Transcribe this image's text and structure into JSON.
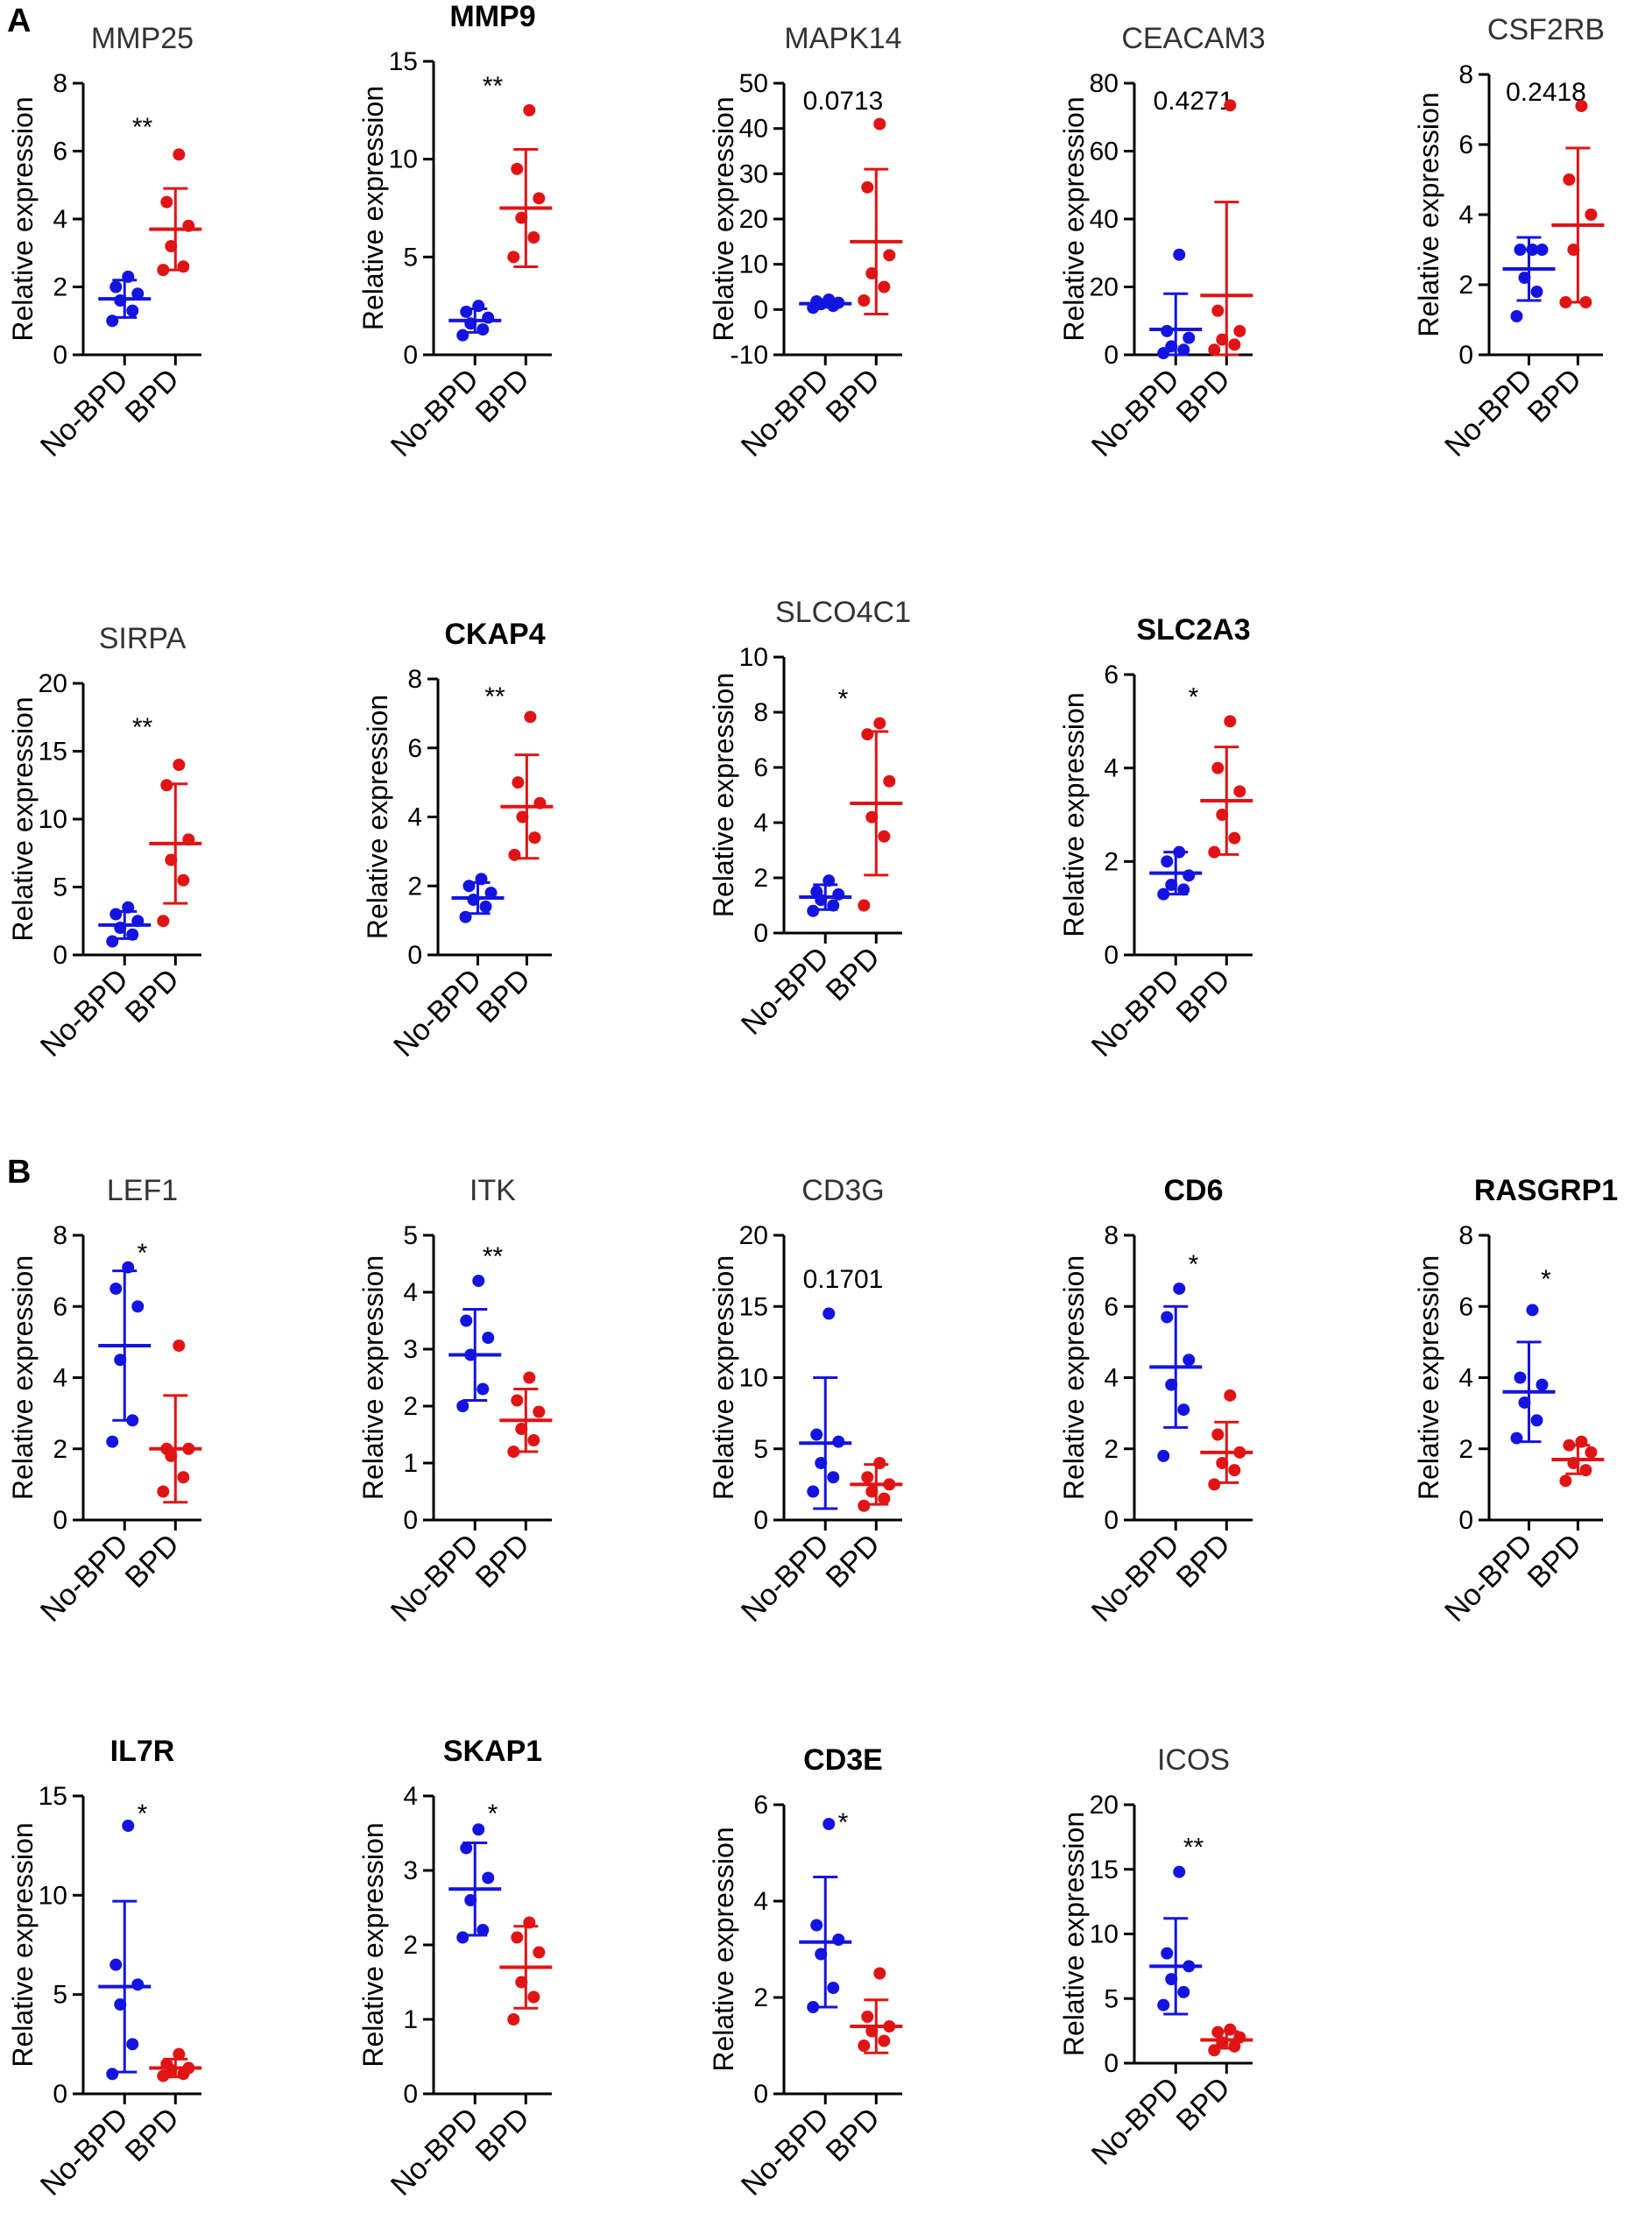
{
  "panel_labels": [
    "A",
    "B"
  ],
  "colors": {
    "nobpd": "#1414e0",
    "bpd": "#e01414",
    "axis": "#000000"
  },
  "chart_data": [
    {
      "type": "scatter",
      "panel": "A",
      "title": "MMP25",
      "bold": false,
      "ylabel": "Relative expression",
      "categories": [
        "No-BPD",
        "BPD"
      ],
      "ylim": [
        0,
        8
      ],
      "yticks": [
        0,
        2,
        4,
        6,
        8
      ],
      "sig": "**",
      "series": [
        {
          "name": "No-BPD",
          "mean": 1.65,
          "sd": 0.55,
          "points": [
            1.0,
            1.3,
            1.6,
            1.8,
            2.0,
            2.3
          ]
        },
        {
          "name": "BPD",
          "mean": 3.7,
          "sd": 1.2,
          "points": [
            2.5,
            2.6,
            3.2,
            3.8,
            4.5,
            5.9
          ]
        }
      ]
    },
    {
      "type": "scatter",
      "panel": "A",
      "title": "MMP9",
      "bold": true,
      "ylabel": "Relative expression",
      "categories": [
        "No-BPD",
        "BPD"
      ],
      "ylim": [
        0,
        15
      ],
      "yticks": [
        0,
        5,
        10,
        15
      ],
      "sig": "**",
      "series": [
        {
          "name": "No-BPD",
          "mean": 1.75,
          "sd": 0.6,
          "points": [
            1.0,
            1.3,
            1.6,
            1.9,
            2.2,
            2.5
          ]
        },
        {
          "name": "BPD",
          "mean": 7.5,
          "sd": 3.0,
          "points": [
            5.0,
            6.0,
            7.0,
            8.0,
            9.5,
            12.5
          ]
        }
      ]
    },
    {
      "type": "scatter",
      "panel": "A",
      "title": "MAPK14",
      "bold": false,
      "ylabel": "Relative expression",
      "categories": [
        "No-BPD",
        "BPD"
      ],
      "ylim": [
        -10,
        50
      ],
      "yticks": [
        -10,
        0,
        10,
        20,
        30,
        40,
        50
      ],
      "sig": "0.0713",
      "series": [
        {
          "name": "No-BPD",
          "mean": 1.3,
          "sd": 0.8,
          "points": [
            0.4,
            0.8,
            1.2,
            1.5,
            1.8,
            2.2
          ]
        },
        {
          "name": "BPD",
          "mean": 15.0,
          "sd": 16.0,
          "points": [
            2.0,
            5.0,
            8.0,
            12.0,
            27.0,
            41.0
          ]
        }
      ]
    },
    {
      "type": "scatter",
      "panel": "A",
      "title": "CEACAM3",
      "bold": false,
      "ylabel": "Relative expression",
      "categories": [
        "No-BPD",
        "BPD"
      ],
      "ylim": [
        0,
        80
      ],
      "yticks": [
        0,
        20,
        40,
        60,
        80
      ],
      "sig": "0.4271",
      "series": [
        {
          "name": "No-BPD",
          "mean": 7.5,
          "sd": 10.5,
          "points": [
            0.5,
            1.5,
            2.5,
            5.0,
            7.0,
            29.5
          ]
        },
        {
          "name": "BPD",
          "mean": 17.5,
          "sd": 27.5,
          "points": [
            1.5,
            3.0,
            4.5,
            7.0,
            13.0,
            73.5
          ]
        }
      ]
    },
    {
      "type": "scatter",
      "panel": "A",
      "title": "CSF2RB",
      "bold": false,
      "ylabel": "Relative expression",
      "categories": [
        "No-BPD",
        "BPD"
      ],
      "ylim": [
        0,
        8
      ],
      "yticks": [
        0,
        2,
        4,
        6,
        8
      ],
      "sig": "0.2418",
      "series": [
        {
          "name": "No-BPD",
          "mean": 2.45,
          "sd": 0.9,
          "points": [
            1.1,
            1.8,
            2.2,
            3.0,
            3.0,
            3.0
          ]
        },
        {
          "name": "BPD",
          "mean": 3.7,
          "sd": 2.2,
          "points": [
            1.5,
            1.5,
            3.0,
            4.0,
            5.0,
            7.1
          ]
        }
      ]
    },
    {
      "type": "scatter",
      "panel": "A",
      "title": "SIRPA",
      "bold": false,
      "ylabel": "Relative expression",
      "categories": [
        "No-BPD",
        "BPD"
      ],
      "ylim": [
        0,
        20
      ],
      "yticks": [
        0,
        5,
        10,
        15,
        20
      ],
      "sig": "**",
      "series": [
        {
          "name": "No-BPD",
          "mean": 2.2,
          "sd": 1.0,
          "points": [
            1.0,
            1.5,
            2.0,
            2.5,
            3.0,
            3.5
          ]
        },
        {
          "name": "BPD",
          "mean": 8.2,
          "sd": 4.4,
          "points": [
            2.5,
            5.5,
            7.0,
            8.5,
            12.5,
            14.0
          ]
        }
      ]
    },
    {
      "type": "scatter",
      "panel": "A",
      "title": "CKAP4",
      "bold": true,
      "ylabel": "Relative expression",
      "categories": [
        "No-BPD",
        "BPD"
      ],
      "ylim": [
        0,
        8
      ],
      "yticks": [
        0,
        2,
        4,
        6,
        8
      ],
      "sig": "**",
      "series": [
        {
          "name": "No-BPD",
          "mean": 1.65,
          "sd": 0.45,
          "points": [
            1.1,
            1.4,
            1.6,
            1.8,
            2.0,
            2.2
          ]
        },
        {
          "name": "BPD",
          "mean": 4.3,
          "sd": 1.5,
          "points": [
            2.9,
            3.4,
            4.0,
            4.4,
            5.0,
            6.9
          ]
        }
      ]
    },
    {
      "type": "scatter",
      "panel": "A",
      "title": "SLCO4C1",
      "bold": false,
      "ylabel": "Relative expression",
      "categories": [
        "No-BPD",
        "BPD"
      ],
      "ylim": [
        0,
        10
      ],
      "yticks": [
        0,
        2,
        4,
        6,
        8,
        10
      ],
      "sig": "*",
      "series": [
        {
          "name": "No-BPD",
          "mean": 1.3,
          "sd": 0.45,
          "points": [
            0.8,
            1.0,
            1.2,
            1.4,
            1.5,
            1.9
          ]
        },
        {
          "name": "BPD",
          "mean": 4.7,
          "sd": 2.6,
          "points": [
            1.0,
            3.5,
            4.2,
            5.5,
            7.2,
            7.6
          ]
        }
      ]
    },
    {
      "type": "scatter",
      "panel": "A",
      "title": "SLC2A3",
      "bold": true,
      "ylabel": "Relative expression",
      "categories": [
        "No-BPD",
        "BPD"
      ],
      "ylim": [
        0,
        6
      ],
      "yticks": [
        0,
        2,
        4,
        6
      ],
      "sig": "*",
      "series": [
        {
          "name": "No-BPD",
          "mean": 1.75,
          "sd": 0.45,
          "points": [
            1.3,
            1.4,
            1.5,
            1.7,
            2.0,
            2.2
          ]
        },
        {
          "name": "BPD",
          "mean": 3.3,
          "sd": 1.15,
          "points": [
            2.2,
            2.5,
            3.0,
            3.5,
            4.0,
            5.0
          ]
        }
      ]
    },
    {
      "type": "scatter",
      "panel": "B",
      "title": "LEF1",
      "bold": false,
      "ylabel": "Relative expression",
      "categories": [
        "No-BPD",
        "BPD"
      ],
      "ylim": [
        0,
        8
      ],
      "yticks": [
        0,
        2,
        4,
        6,
        8
      ],
      "sig": "*",
      "series": [
        {
          "name": "No-BPD",
          "mean": 4.9,
          "sd": 2.1,
          "points": [
            2.2,
            2.8,
            4.5,
            6.0,
            6.5,
            7.1
          ]
        },
        {
          "name": "BPD",
          "mean": 2.0,
          "sd": 1.5,
          "points": [
            0.8,
            1.2,
            1.8,
            2.0,
            2.0,
            4.9
          ]
        }
      ]
    },
    {
      "type": "scatter",
      "panel": "B",
      "title": "ITK",
      "bold": false,
      "ylabel": "Relative expression",
      "categories": [
        "No-BPD",
        "BPD"
      ],
      "ylim": [
        0,
        5
      ],
      "yticks": [
        0,
        1,
        2,
        3,
        4,
        5
      ],
      "sig": "**",
      "series": [
        {
          "name": "No-BPD",
          "mean": 2.9,
          "sd": 0.8,
          "points": [
            2.0,
            2.3,
            2.9,
            3.2,
            3.5,
            4.2
          ]
        },
        {
          "name": "BPD",
          "mean": 1.75,
          "sd": 0.55,
          "points": [
            1.2,
            1.4,
            1.6,
            1.9,
            2.1,
            2.5
          ]
        }
      ]
    },
    {
      "type": "scatter",
      "panel": "B",
      "title": "CD3G",
      "bold": false,
      "ylabel": "Relative expression",
      "categories": [
        "No-BPD",
        "BPD"
      ],
      "ylim": [
        0,
        20
      ],
      "yticks": [
        0,
        5,
        10,
        15,
        20
      ],
      "sig": "0.1701",
      "series": [
        {
          "name": "No-BPD",
          "mean": 5.4,
          "sd": 4.6,
          "points": [
            2.0,
            3.0,
            4.0,
            5.5,
            6.0,
            14.5
          ]
        },
        {
          "name": "BPD",
          "mean": 2.5,
          "sd": 1.4,
          "points": [
            1.0,
            1.5,
            2.0,
            2.5,
            3.0,
            4.0
          ]
        }
      ]
    },
    {
      "type": "scatter",
      "panel": "B",
      "title": "CD6",
      "bold": true,
      "ylabel": "Relative expression",
      "categories": [
        "No-BPD",
        "BPD"
      ],
      "ylim": [
        0,
        8
      ],
      "yticks": [
        0,
        2,
        4,
        6,
        8
      ],
      "sig": "*",
      "series": [
        {
          "name": "No-BPD",
          "mean": 4.3,
          "sd": 1.7,
          "points": [
            1.8,
            3.1,
            3.8,
            4.5,
            5.7,
            6.5
          ]
        },
        {
          "name": "BPD",
          "mean": 1.9,
          "sd": 0.85,
          "points": [
            1.0,
            1.4,
            1.6,
            1.9,
            2.4,
            3.5
          ]
        }
      ]
    },
    {
      "type": "scatter",
      "panel": "B",
      "title": "RASGRP1",
      "bold": true,
      "ylabel": "Relative expression",
      "categories": [
        "No-BPD",
        "BPD"
      ],
      "ylim": [
        0,
        8
      ],
      "yticks": [
        0,
        2,
        4,
        6,
        8
      ],
      "sig": "*",
      "series": [
        {
          "name": "No-BPD",
          "mean": 3.6,
          "sd": 1.4,
          "points": [
            2.3,
            2.8,
            3.3,
            3.8,
            4.0,
            5.9
          ]
        },
        {
          "name": "BPD",
          "mean": 1.7,
          "sd": 0.4,
          "points": [
            1.1,
            1.4,
            1.6,
            1.9,
            2.1,
            2.2
          ]
        }
      ]
    },
    {
      "type": "scatter",
      "panel": "B",
      "title": "IL7R",
      "bold": true,
      "ylabel": "Relative expression",
      "categories": [
        "No-BPD",
        "BPD"
      ],
      "ylim": [
        0,
        15
      ],
      "yticks": [
        0,
        5,
        10,
        15
      ],
      "sig": "*",
      "series": [
        {
          "name": "No-BPD",
          "mean": 5.4,
          "sd": 4.3,
          "points": [
            1.0,
            2.5,
            4.5,
            5.5,
            6.5,
            13.5
          ]
        },
        {
          "name": "BPD",
          "mean": 1.3,
          "sd": 0.45,
          "points": [
            0.9,
            1.0,
            1.2,
            1.3,
            1.5,
            2.0
          ]
        }
      ]
    },
    {
      "type": "scatter",
      "panel": "B",
      "title": "SKAP1",
      "bold": true,
      "ylabel": "Relative expression",
      "categories": [
        "No-BPD",
        "BPD"
      ],
      "ylim": [
        0,
        4
      ],
      "yticks": [
        0,
        1,
        2,
        3,
        4
      ],
      "sig": "*",
      "series": [
        {
          "name": "No-BPD",
          "mean": 2.75,
          "sd": 0.62,
          "points": [
            2.1,
            2.2,
            2.6,
            2.9,
            3.3,
            3.55
          ]
        },
        {
          "name": "BPD",
          "mean": 1.7,
          "sd": 0.55,
          "points": [
            1.0,
            1.3,
            1.5,
            1.9,
            2.1,
            2.3
          ]
        }
      ]
    },
    {
      "type": "scatter",
      "panel": "B",
      "title": "CD3E",
      "bold": true,
      "ylabel": "Relative expression",
      "categories": [
        "No-BPD",
        "BPD"
      ],
      "ylim": [
        0,
        6
      ],
      "yticks": [
        0,
        2,
        4,
        6
      ],
      "sig": "*",
      "series": [
        {
          "name": "No-BPD",
          "mean": 3.15,
          "sd": 1.35,
          "points": [
            1.8,
            2.2,
            2.9,
            3.2,
            3.5,
            5.6
          ]
        },
        {
          "name": "BPD",
          "mean": 1.4,
          "sd": 0.55,
          "points": [
            1.0,
            1.1,
            1.3,
            1.4,
            1.6,
            2.5
          ]
        }
      ]
    },
    {
      "type": "scatter",
      "panel": "B",
      "title": "ICOS",
      "bold": false,
      "ylabel": "Relative expression",
      "categories": [
        "No-BPD",
        "BPD"
      ],
      "ylim": [
        0,
        20
      ],
      "yticks": [
        0,
        5,
        10,
        15,
        20
      ],
      "sig": "**",
      "series": [
        {
          "name": "No-BPD",
          "mean": 7.5,
          "sd": 3.7,
          "points": [
            4.5,
            5.5,
            6.5,
            7.5,
            8.5,
            14.8
          ]
        },
        {
          "name": "BPD",
          "mean": 1.8,
          "sd": 0.65,
          "points": [
            1.0,
            1.3,
            1.6,
            2.0,
            2.4,
            2.6
          ]
        }
      ]
    }
  ]
}
